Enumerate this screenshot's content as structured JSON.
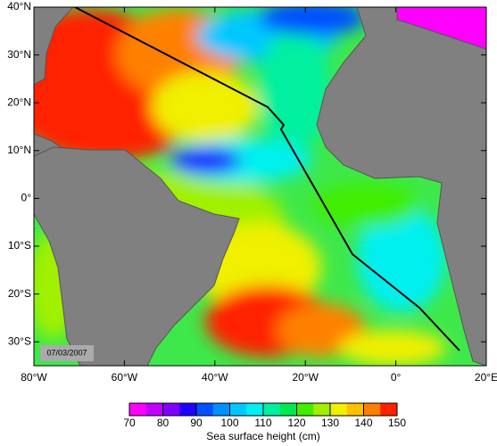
{
  "map": {
    "lon_lim": [
      -80,
      20
    ],
    "lat_lim": [
      -35,
      40
    ],
    "x_ticks": [
      {
        "value": -80,
        "label": "80°W"
      },
      {
        "value": -60,
        "label": "60°W"
      },
      {
        "value": -40,
        "label": "40°W"
      },
      {
        "value": -20,
        "label": "20°W"
      },
      {
        "value": 0,
        "label": "0°"
      },
      {
        "value": 20,
        "label": "20°E"
      }
    ],
    "y_ticks": [
      {
        "value": 40,
        "label": "40°N"
      },
      {
        "value": 30,
        "label": "30°N"
      },
      {
        "value": 20,
        "label": "20°N"
      },
      {
        "value": 10,
        "label": "10°N"
      },
      {
        "value": 0,
        "label": "0°"
      },
      {
        "value": -10,
        "label": "10°S"
      },
      {
        "value": -20,
        "label": "20°S"
      },
      {
        "value": -30,
        "label": "30°S"
      }
    ],
    "date": "07/03/2007",
    "colorbar": {
      "lim": [
        70,
        150
      ],
      "ticks": [
        70,
        80,
        90,
        100,
        110,
        120,
        130,
        140,
        150
      ],
      "colors": [
        "#ff00ff",
        "#c000ff",
        "#8000ff",
        "#2000ff",
        "#0050ff",
        "#0090ff",
        "#00c8ff",
        "#00f0f0",
        "#00f0a0",
        "#00e850",
        "#40ee00",
        "#a0f000",
        "#f0f000",
        "#ffc000",
        "#ff8000",
        "#ff2000"
      ],
      "label": "Sea surface height (cm)"
    }
  }
}
